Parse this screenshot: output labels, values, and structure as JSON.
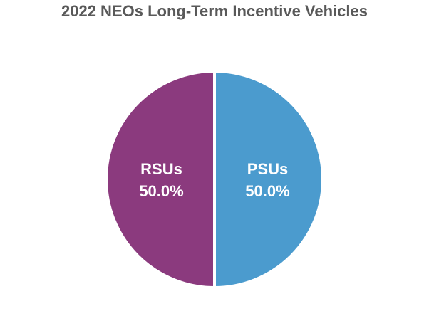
{
  "chart_data": {
    "type": "pie",
    "title": "2022 NEOs Long-Term Incentive Vehicles",
    "slices": [
      {
        "name": "PSUs",
        "value": 50.0,
        "label": "50.0%",
        "color": "#4B9BCE"
      },
      {
        "name": "RSUs",
        "value": 50.0,
        "label": "50.0%",
        "color": "#8B3A7E"
      }
    ],
    "legend": "none"
  }
}
